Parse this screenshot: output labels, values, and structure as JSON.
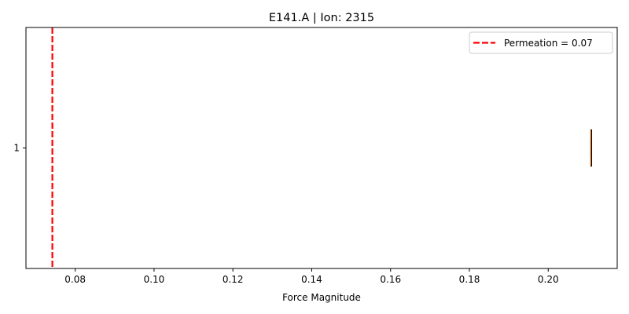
{
  "chart_data": {
    "type": "boxplot",
    "title": "E141.A | Ion: 2315",
    "xlabel": "Force Magnitude",
    "ylabel": "",
    "xlim": [
      0.0675,
      0.2175
    ],
    "ylim": [
      0.5,
      1.5
    ],
    "xticks": [
      0.08,
      0.1,
      0.12,
      0.14,
      0.16,
      0.18,
      0.2
    ],
    "xtick_labels": [
      "0.08",
      "0.10",
      "0.12",
      "0.14",
      "0.16",
      "0.18",
      "0.20"
    ],
    "yticks": [
      1
    ],
    "ytick_labels": [
      "1"
    ],
    "boxes": [
      {
        "position": 1,
        "whislo": 0.2108,
        "q1": 0.2108,
        "median": 0.2108,
        "q3": 0.2109,
        "whishi": 0.2109
      }
    ],
    "reference_line": {
      "value": 0.0742,
      "orientation": "vertical",
      "style": "dashed",
      "color": "#ff0000",
      "label": "Permeation = 0.07"
    },
    "legend": {
      "placement": "upper-right",
      "entries": [
        "Permeation = 0.07"
      ]
    },
    "grid": false
  }
}
